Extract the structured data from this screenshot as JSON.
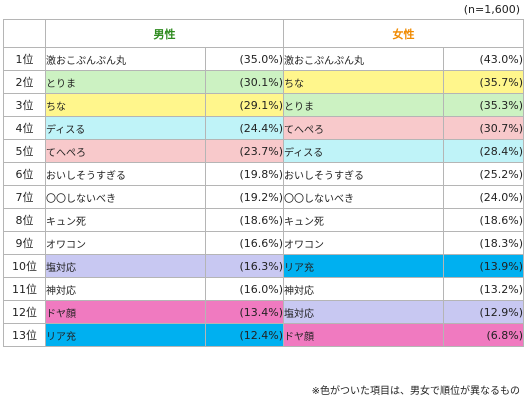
{
  "sample_note": "(n=1,600)",
  "footnote": "※色がついた項目は、男女で順位が異なるもの",
  "headers": {
    "male": "男性",
    "female": "女性"
  },
  "colors": {
    "green": "#ccf2c2",
    "yellow": "#fff68c",
    "cyan": "#bff3f8",
    "pink": "#f8c9cb",
    "lavender": "#c8c8f2",
    "blue": "#00b0f0",
    "magenta": "#f07ac0",
    "none": "#ffffff"
  },
  "rows": [
    {
      "rank": "1位",
      "male": {
        "name": "激おこぷんぷん丸",
        "pct": "(35.0%)",
        "color": "none"
      },
      "female": {
        "name": "激おこぷんぷん丸",
        "pct": "(43.0%)",
        "color": "none"
      }
    },
    {
      "rank": "2位",
      "male": {
        "name": "とりま",
        "pct": "(30.1%)",
        "color": "green"
      },
      "female": {
        "name": "ちな",
        "pct": "(35.7%)",
        "color": "yellow"
      }
    },
    {
      "rank": "3位",
      "male": {
        "name": "ちな",
        "pct": "(29.1%)",
        "color": "yellow"
      },
      "female": {
        "name": "とりま",
        "pct": "(35.3%)",
        "color": "green"
      }
    },
    {
      "rank": "4位",
      "male": {
        "name": "ディスる",
        "pct": "(24.4%)",
        "color": "cyan"
      },
      "female": {
        "name": "てへぺろ",
        "pct": "(30.7%)",
        "color": "pink"
      }
    },
    {
      "rank": "5位",
      "male": {
        "name": "てへぺろ",
        "pct": "(23.7%)",
        "color": "pink"
      },
      "female": {
        "name": "ディスる",
        "pct": "(28.4%)",
        "color": "cyan"
      }
    },
    {
      "rank": "6位",
      "male": {
        "name": "おいしそうすぎる",
        "pct": "(19.8%)",
        "color": "none"
      },
      "female": {
        "name": "おいしそうすぎる",
        "pct": "(25.2%)",
        "color": "none"
      }
    },
    {
      "rank": "7位",
      "male": {
        "name": "〇〇しないべき",
        "pct": "(19.2%)",
        "color": "none"
      },
      "female": {
        "name": "〇〇しないべき",
        "pct": "(24.0%)",
        "color": "none"
      }
    },
    {
      "rank": "8位",
      "male": {
        "name": "キュン死",
        "pct": "(18.6%)",
        "color": "none"
      },
      "female": {
        "name": "キュン死",
        "pct": "(18.6%)",
        "color": "none"
      }
    },
    {
      "rank": "9位",
      "male": {
        "name": "オワコン",
        "pct": "(16.6%)",
        "color": "none"
      },
      "female": {
        "name": "オワコン",
        "pct": "(18.3%)",
        "color": "none"
      }
    },
    {
      "rank": "10位",
      "male": {
        "name": "塩対応",
        "pct": "(16.3%)",
        "color": "lavender"
      },
      "female": {
        "name": "リア充",
        "pct": "(13.9%)",
        "color": "blue"
      }
    },
    {
      "rank": "11位",
      "male": {
        "name": "神対応",
        "pct": "(16.0%)",
        "color": "none"
      },
      "female": {
        "name": "神対応",
        "pct": "(13.2%)",
        "color": "none"
      }
    },
    {
      "rank": "12位",
      "male": {
        "name": "ドヤ顔",
        "pct": "(13.4%)",
        "color": "magenta"
      },
      "female": {
        "name": "塩対応",
        "pct": "(12.9%)",
        "color": "lavender"
      }
    },
    {
      "rank": "13位",
      "male": {
        "name": "リア充",
        "pct": "(12.4%)",
        "color": "blue"
      },
      "female": {
        "name": "ドヤ顔",
        "pct": "(6.8%)",
        "color": "magenta"
      }
    }
  ]
}
